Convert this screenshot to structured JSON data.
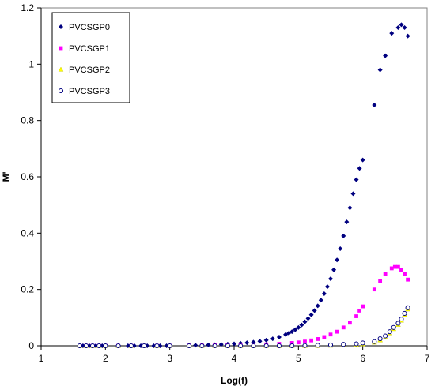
{
  "chart_data": {
    "type": "scatter",
    "title": "",
    "xlabel": "Log(f)",
    "ylabel": "M'",
    "xlim": [
      1,
      7
    ],
    "ylim": [
      0,
      1.2
    ],
    "xticks": [
      "1",
      "2",
      "3",
      "4",
      "5",
      "6",
      "7"
    ],
    "yticks": [
      "0",
      "0.2",
      "0.4",
      "0.6",
      "0.8",
      "1",
      "1.2"
    ],
    "grid": false,
    "legend_position": "top-left",
    "series": [
      {
        "name": "PVCSGP0",
        "color": "#000080",
        "marker": "diamond",
        "x": [
          1.6,
          1.65,
          1.7,
          1.75,
          1.8,
          1.85,
          1.9,
          1.95,
          2.0,
          2.2,
          2.35,
          2.45,
          2.55,
          2.65,
          2.75,
          2.85,
          2.95,
          3.0,
          3.3,
          3.4,
          3.5,
          3.6,
          3.7,
          3.8,
          3.9,
          4.0,
          4.1,
          4.2,
          4.3,
          4.4,
          4.5,
          4.6,
          4.7,
          4.8,
          4.85,
          4.9,
          4.95,
          5.0,
          5.05,
          5.1,
          5.15,
          5.2,
          5.25,
          5.3,
          5.35,
          5.4,
          5.45,
          5.5,
          5.55,
          5.6,
          5.65,
          5.7,
          5.75,
          5.8,
          5.85,
          5.9,
          5.95,
          6.0,
          6.18,
          6.27,
          6.35,
          6.45,
          6.55,
          6.6,
          6.65,
          6.7
        ],
        "y": [
          0,
          0,
          0,
          0,
          0,
          0,
          0,
          0,
          0,
          0,
          0,
          0,
          0,
          0,
          0,
          0,
          0,
          0,
          0.002,
          0.002,
          0.003,
          0.003,
          0.004,
          0.005,
          0.006,
          0.007,
          0.009,
          0.011,
          0.013,
          0.016,
          0.02,
          0.025,
          0.031,
          0.04,
          0.045,
          0.05,
          0.057,
          0.065,
          0.074,
          0.085,
          0.097,
          0.11,
          0.125,
          0.142,
          0.162,
          0.185,
          0.21,
          0.238,
          0.27,
          0.305,
          0.345,
          0.39,
          0.44,
          0.49,
          0.54,
          0.59,
          0.63,
          0.66,
          0.855,
          0.98,
          1.03,
          1.11,
          1.13,
          1.14,
          1.13,
          1.1
        ]
      },
      {
        "name": "PVCSGP1",
        "color": "#ff00ff",
        "marker": "square",
        "x": [
          1.6,
          1.7,
          1.8,
          1.9,
          2.0,
          2.2,
          2.4,
          2.6,
          2.8,
          3.0,
          3.3,
          3.5,
          3.7,
          3.9,
          4.1,
          4.3,
          4.5,
          4.7,
          4.9,
          5.0,
          5.1,
          5.2,
          5.3,
          5.4,
          5.5,
          5.6,
          5.7,
          5.8,
          5.9,
          5.95,
          6.0,
          6.18,
          6.27,
          6.35,
          6.45,
          6.5,
          6.55,
          6.6,
          6.65,
          6.7
        ],
        "y": [
          0,
          0,
          0,
          0,
          0,
          0,
          0,
          0,
          0,
          0,
          0.001,
          0.001,
          0.002,
          0.002,
          0.003,
          0.004,
          0.005,
          0.007,
          0.01,
          0.012,
          0.015,
          0.019,
          0.024,
          0.031,
          0.04,
          0.05,
          0.065,
          0.082,
          0.105,
          0.125,
          0.14,
          0.2,
          0.23,
          0.255,
          0.275,
          0.28,
          0.28,
          0.27,
          0.255,
          0.235
        ]
      },
      {
        "name": "PVCSGP2",
        "color": "#ffff00",
        "marker": "triangle",
        "x": [
          1.6,
          1.7,
          1.8,
          1.9,
          2.0,
          2.2,
          2.4,
          2.6,
          2.8,
          3.0,
          3.3,
          3.5,
          3.7,
          3.9,
          4.1,
          4.3,
          4.5,
          4.7,
          4.9,
          5.1,
          5.3,
          5.5,
          5.7,
          5.9,
          6.0,
          6.18,
          6.27,
          6.35,
          6.42,
          6.48,
          6.55,
          6.6,
          6.65,
          6.7
        ],
        "y": [
          0,
          0,
          0,
          0,
          0,
          0,
          0,
          0,
          0,
          0,
          0,
          0,
          0,
          0,
          0,
          0,
          0,
          0,
          0,
          0,
          0,
          0.001,
          0.002,
          0.004,
          0.006,
          0.012,
          0.02,
          0.03,
          0.045,
          0.06,
          0.075,
          0.09,
          0.11,
          0.13
        ]
      },
      {
        "name": "PVCSGP3",
        "color": "#000080",
        "marker": "circle",
        "x": [
          1.6,
          1.7,
          1.8,
          1.9,
          2.0,
          2.2,
          2.4,
          2.6,
          2.8,
          3.0,
          3.3,
          3.5,
          3.7,
          3.9,
          4.1,
          4.3,
          4.5,
          4.7,
          4.9,
          5.1,
          5.3,
          5.5,
          5.7,
          5.9,
          6.0,
          6.18,
          6.27,
          6.35,
          6.42,
          6.48,
          6.55,
          6.6,
          6.65,
          6.7
        ],
        "y": [
          0,
          0,
          0,
          0,
          0,
          0,
          0,
          0,
          0,
          0,
          0,
          0,
          0,
          0,
          0,
          0,
          0,
          0,
          0,
          0.001,
          0.002,
          0.003,
          0.005,
          0.007,
          0.01,
          0.015,
          0.025,
          0.035,
          0.05,
          0.065,
          0.08,
          0.095,
          0.115,
          0.135
        ]
      }
    ]
  }
}
